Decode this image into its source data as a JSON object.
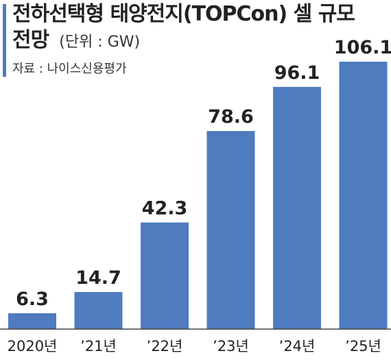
{
  "header": {
    "title_line1": "전하선택형 태양전지(TOPCon) 셀 규모",
    "title_line2": "전망",
    "unit": "(단위 : GW)",
    "source": "자료 : 나이스신용평가"
  },
  "colors": {
    "bar": "#4f7bbf",
    "accent": "#4f7bbf"
  },
  "chart_data": {
    "type": "bar",
    "title": "전하선택형 태양전지(TOPCon) 셀 규모 전망",
    "unit": "(단위 : GW)",
    "categories": [
      "2020년",
      "’21년",
      "’22년",
      "’23년",
      "’24년",
      "’25년"
    ],
    "values": [
      6.3,
      14.7,
      42.3,
      78.6,
      96.1,
      106.1
    ],
    "value_labels": [
      "6.3",
      "14.7",
      "42.3",
      "78.6",
      "96.1",
      "106.1"
    ],
    "ylim": [
      0,
      106.1
    ],
    "grid": false,
    "legend": "none"
  }
}
